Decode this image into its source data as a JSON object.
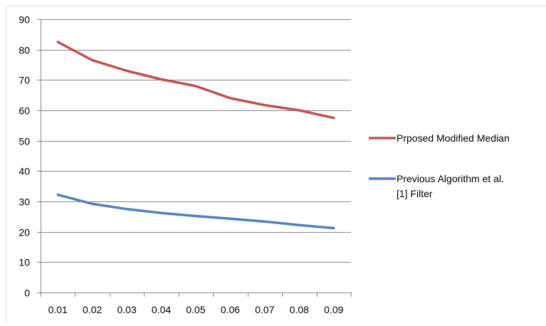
{
  "chart_data": {
    "type": "line",
    "categories": [
      "0.01",
      "0.02",
      "0.03",
      "0.04",
      "0.05",
      "0.06",
      "0.07",
      "0.08",
      "0.09"
    ],
    "ylim": [
      0,
      90
    ],
    "yticks": [
      "0",
      "10",
      "20",
      "30",
      "40",
      "50",
      "60",
      "70",
      "80",
      "90"
    ],
    "grid": true,
    "legend_position": "right",
    "series": [
      {
        "name": "Prposed Modified Median",
        "color": "#c0504d",
        "values": [
          82.5,
          76.5,
          73.0,
          70.2,
          68.0,
          64.0,
          61.7,
          60.0,
          57.5
        ]
      },
      {
        "name": "Previous Algorithm et al. [1] Filter",
        "color": "#4f81bd",
        "values": [
          32.2,
          29.2,
          27.5,
          26.2,
          25.2,
          24.3,
          23.4,
          22.2,
          21.2
        ]
      }
    ]
  }
}
